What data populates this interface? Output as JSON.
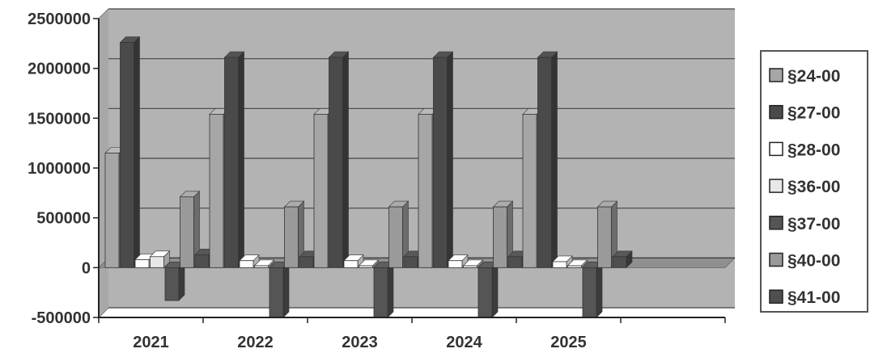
{
  "chart_data": {
    "type": "bar",
    "title": "",
    "xlabel": "",
    "ylabel": "",
    "categories": [
      "2021",
      "2022",
      "2023",
      "2024",
      "2025"
    ],
    "ylim": [
      -500000,
      2500000
    ],
    "yticks": [
      "2500000",
      "2000000",
      "1500000",
      "1000000",
      "500000",
      "0",
      "-500000"
    ],
    "grid": true,
    "legend_position": "right",
    "series": [
      {
        "name": "§24-00",
        "values": [
          1150000,
          1540000,
          1540000,
          1540000,
          1540000
        ],
        "color": "#a6a6a6"
      },
      {
        "name": "§27-00",
        "values": [
          2260000,
          2110000,
          2110000,
          2110000,
          2110000
        ],
        "color": "#4a4a4a"
      },
      {
        "name": "§28-00",
        "values": [
          80000,
          70000,
          70000,
          70000,
          60000
        ],
        "color": "#ffffff"
      },
      {
        "name": "§36-00",
        "values": [
          110000,
          20000,
          20000,
          20000,
          20000
        ],
        "color": "#e8e8e8"
      },
      {
        "name": "§37-00",
        "values": [
          -330000,
          -500000,
          -500000,
          -500000,
          -500000
        ],
        "color": "#555555"
      },
      {
        "name": "§40-00",
        "values": [
          710000,
          610000,
          610000,
          610000,
          610000
        ],
        "color": "#9a9a9a"
      },
      {
        "name": "§41-00",
        "values": [
          130000,
          110000,
          110000,
          110000,
          110000
        ],
        "color": "#4f4f4f"
      }
    ]
  }
}
